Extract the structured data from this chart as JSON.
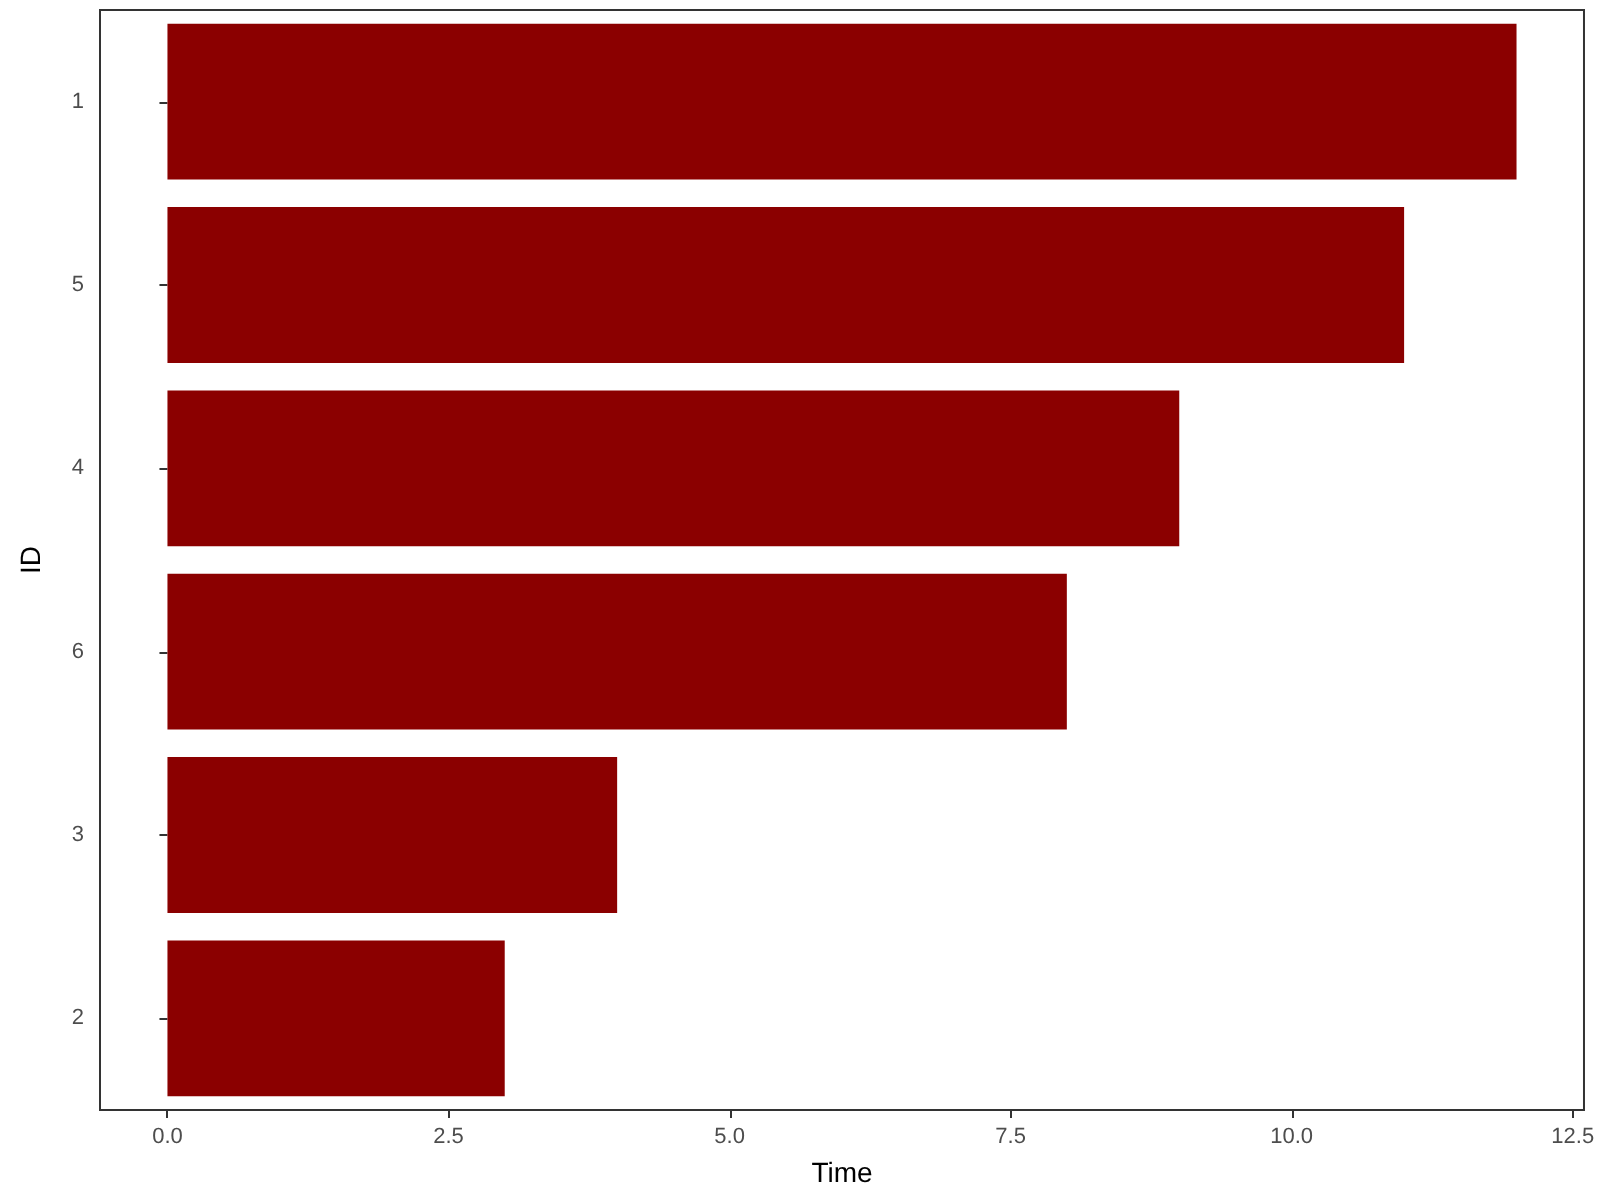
{
  "chart_data": {
    "type": "bar",
    "orientation": "horizontal",
    "xlabel": "Time",
    "ylabel": "ID",
    "categories": [
      "1",
      "5",
      "4",
      "6",
      "3",
      "2"
    ],
    "values": [
      12,
      11,
      9,
      8,
      4,
      3
    ],
    "color": "#8b0000",
    "xlim": [
      -0.6,
      12.6
    ],
    "xticks": [
      {
        "value": 0,
        "label": "0.0"
      },
      {
        "value": 2.5,
        "label": "2.5"
      },
      {
        "value": 5,
        "label": "5.0"
      },
      {
        "value": 7.5,
        "label": "7.5"
      },
      {
        "value": 10,
        "label": "10.0"
      },
      {
        "value": 12.5,
        "label": "12.5"
      }
    ],
    "grid": false
  }
}
